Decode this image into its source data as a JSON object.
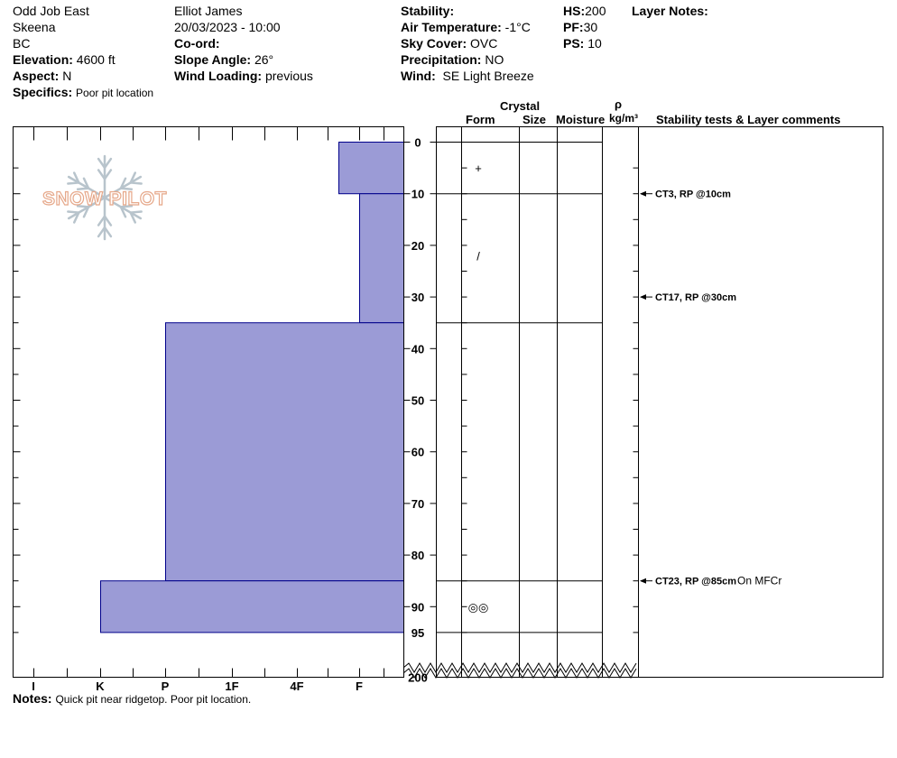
{
  "header": {
    "location": "Odd Job East",
    "range": "Skeena",
    "state": "BC",
    "elevation_label": "Elevation:",
    "elevation_value": "4600 ft",
    "aspect_label": "Aspect:",
    "aspect_value": "N",
    "specifics_label": "Specifics:",
    "specifics_value": "Poor pit location",
    "observer": "Elliot James",
    "datetime": "20/03/2023 - 10:00",
    "coord_label": "Co-ord:",
    "coord_value": "",
    "slope_label": "Slope Angle:",
    "slope_value": "26°",
    "wind_loading_label": "Wind Loading:",
    "wind_loading_value": "previous",
    "stability_label": "Stability:",
    "stability_value": "",
    "air_temp_label": "Air Temperature:",
    "air_temp_value": "-1°C",
    "sky_label": "Sky Cover:",
    "sky_value": "OVC",
    "precip_label": "Precipitation:",
    "precip_value": "NO",
    "wind_label": "Wind:",
    "wind_value": "SE Light Breeze",
    "hs_label": "HS:",
    "hs_value": "200",
    "pf_label": "PF:",
    "pf_value": "30",
    "ps_label": "PS:",
    "ps_value": "10",
    "layer_notes_label": "Layer Notes:"
  },
  "columns": {
    "crystal": "Crystal",
    "form": "Form",
    "size": "Size",
    "moisture": "Moisture",
    "rho": "ρ",
    "density_unit": "kg/m³",
    "comments": "Stability tests & Layer comments"
  },
  "logo_text": "SNOW PILOT",
  "notes_label": "Notes:",
  "notes_value": "Quick pit near ridgetop. Poor pit location.",
  "chart_data": {
    "type": "bar",
    "title": "",
    "hardness_scale": [
      "I",
      "K",
      "P",
      "1F",
      "4F",
      "F"
    ],
    "depth_ticks": [
      0,
      10,
      20,
      30,
      40,
      50,
      60,
      70,
      80,
      90,
      95,
      200
    ],
    "layers": [
      {
        "top": 0,
        "bottom": 10,
        "hardness": "F-"
      },
      {
        "top": 10,
        "bottom": 35,
        "hardness": "F"
      },
      {
        "top": 35,
        "bottom": 85,
        "hardness": "P"
      },
      {
        "top": 85,
        "bottom": 95,
        "hardness": "K"
      }
    ],
    "layer_boundaries": [
      0,
      10,
      35,
      85,
      95
    ],
    "crystal_forms": [
      {
        "depth": 5,
        "symbol": "+"
      },
      {
        "depth": 22,
        "symbol": "/"
      },
      {
        "depth": 90,
        "symbol": "◎◎"
      }
    ],
    "stability_tests": [
      {
        "depth": 10,
        "label": "CT3, RP @10cm",
        "comment": ""
      },
      {
        "depth": 30,
        "label": "CT17, RP @30cm",
        "comment": ""
      },
      {
        "depth": 85,
        "label": "CT23, RP @85cm",
        "comment": "On MFCr"
      }
    ],
    "bar_color": "#9b9bd6",
    "bar_stroke": "#00008b"
  }
}
